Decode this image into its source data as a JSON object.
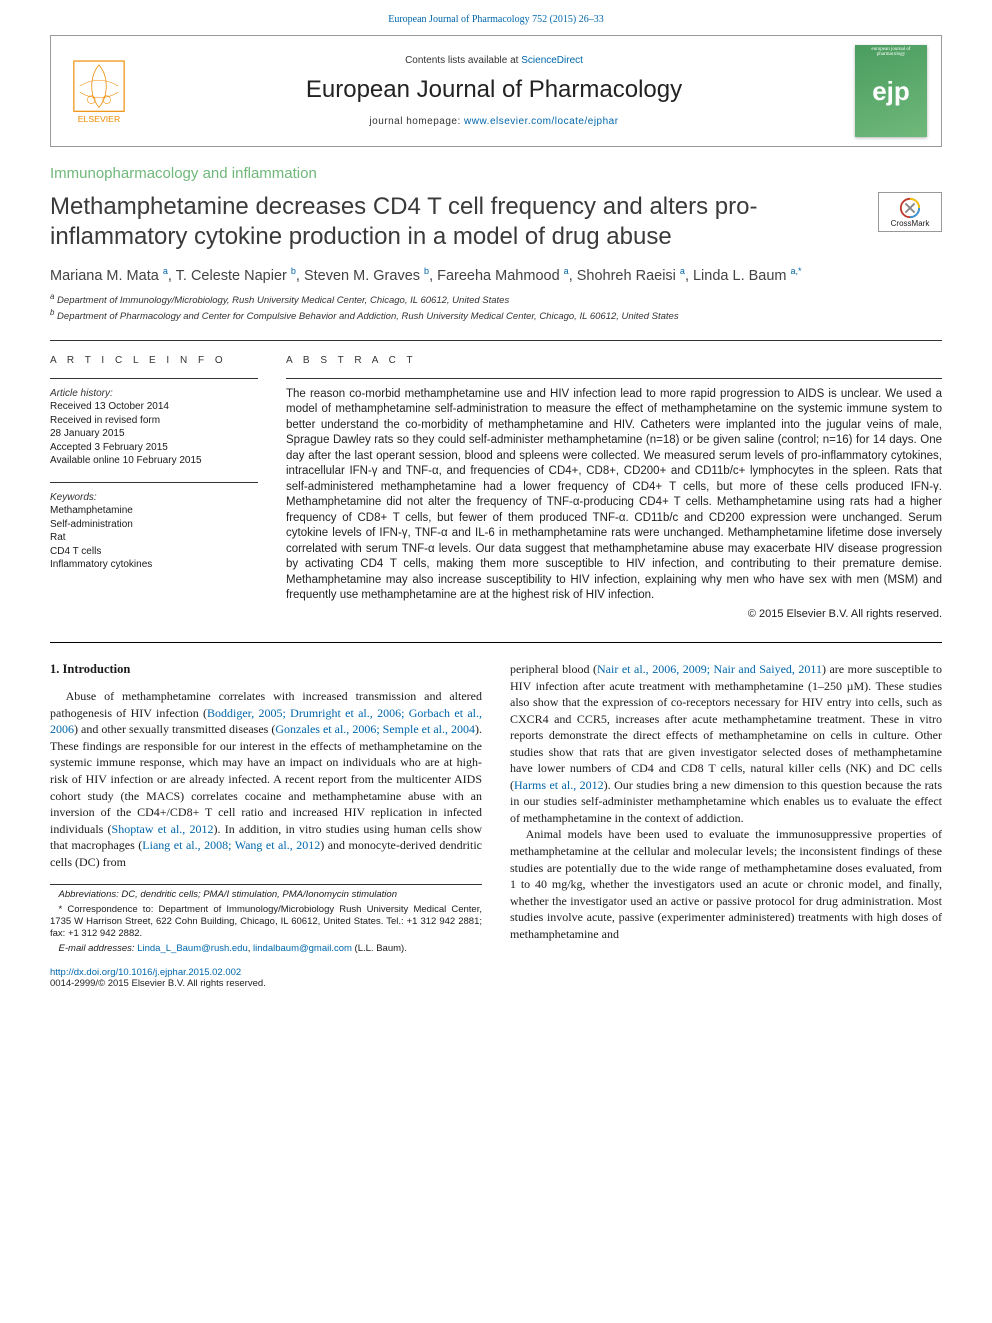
{
  "page_header": {
    "text_pre": "European Journal of Pharmacology 752 (2015) 26–33",
    "link": "European Journal of Pharmacology 752 (2015) 26–33"
  },
  "banner": {
    "contents_pre": "Contents lists available at ",
    "contents_link": "ScienceDirect",
    "journal_name": "European Journal of Pharmacology",
    "homepage_pre": "journal homepage: ",
    "homepage_link": "www.elsevier.com/locate/ejphar",
    "elsevier_label": "ELSEVIER",
    "cover_initials": "ejp",
    "cover_top": "european journal of pharmacology"
  },
  "category": "Immunopharmacology and inflammation",
  "title": "Methamphetamine decreases CD4 T cell frequency and alters pro-inflammatory cytokine production in a model of drug abuse",
  "crossmark_label": "CrossMark",
  "authors_html": "Mariana M. Mata <sup>a</sup>, T. Celeste Napier <sup>b</sup>, Steven M. Graves <sup>b</sup>, Fareeha Mahmood <sup>a</sup>, Shohreh Raeisi <sup>a</sup>, Linda L. Baum <sup>a,*</sup>",
  "affiliations": [
    "a Department of Immunology/Microbiology, Rush University Medical Center, Chicago, IL 60612, United States",
    "b Department of Pharmacology and Center for Compulsive Behavior and Addiction, Rush University Medical Center, Chicago, IL 60612, United States"
  ],
  "article_info": {
    "head": "A R T I C L E  I N F O",
    "history_label": "Article history:",
    "history": [
      "Received 13 October 2014",
      "Received in revised form",
      "28 January 2015",
      "Accepted 3 February 2015",
      "Available online 10 February 2015"
    ],
    "keywords_label": "Keywords:",
    "keywords": [
      "Methamphetamine",
      "Self-administration",
      "Rat",
      "CD4 T cells",
      "Inflammatory cytokines"
    ]
  },
  "abstract": {
    "head": "A B S T R A C T",
    "text": "The reason co-morbid methamphetamine use and HIV infection lead to more rapid progression to AIDS is unclear. We used a model of methamphetamine self-administration to measure the effect of methamphetamine on the systemic immune system to better understand the co-morbidity of methamphetamine and HIV. Catheters were implanted into the jugular veins of male, Sprague Dawley rats so they could self-administer methamphetamine (n=18) or be given saline (control; n=16) for 14 days. One day after the last operant session, blood and spleens were collected. We measured serum levels of pro-inflammatory cytokines, intracellular IFN-γ and TNF-α, and frequencies of CD4+, CD8+, CD200+ and CD11b/c+ lymphocytes in the spleen. Rats that self-administered methamphetamine had a lower frequency of CD4+ T cells, but more of these cells produced IFN-γ. Methamphetamine did not alter the frequency of TNF-α-producing CD4+ T cells. Methamphetamine using rats had a higher frequency of CD8+ T cells, but fewer of them produced TNF-α. CD11b/c and CD200 expression were unchanged. Serum cytokine levels of IFN-γ, TNF-α and IL-6 in methamphetamine rats were unchanged. Methamphetamine lifetime dose inversely correlated with serum TNF-α levels. Our data suggest that methamphetamine abuse may exacerbate HIV disease progression by activating CD4 T cells, making them more susceptible to HIV infection, and contributing to their premature demise. Methamphetamine may also increase susceptibility to HIV infection, explaining why men who have sex with men (MSM) and frequently use methamphetamine are at the highest risk of HIV infection.",
    "copyright": "© 2015 Elsevier B.V. All rights reserved."
  },
  "intro": {
    "heading": "1.  Introduction",
    "col1": [
      "Abuse of methamphetamine correlates with increased transmission and altered pathogenesis of HIV infection (<span class='cite'>Boddiger, 2005; Drumright et al., 2006; Gorbach et al., 2006</span>) and other sexually transmitted diseases (<span class='cite'>Gonzales et al., 2006; Semple et al., 2004</span>). These findings are responsible for our interest in the effects of methamphetamine on the systemic immune response, which may have an impact on individuals who are at high-risk of HIV infection or are already infected. A recent report from the multicenter AIDS cohort study (the MACS) correlates cocaine and methamphetamine abuse with an inversion of the CD4+/CD8+ T cell ratio and increased HIV replication in infected individuals (<span class='cite'>Shoptaw et al., 2012</span>). In addition, in vitro studies using human cells show that macrophages (<span class='cite'>Liang et al., 2008; Wang et al., 2012</span>) and monocyte-derived dendritic cells (DC) from"
    ],
    "col2": [
      "peripheral blood (<span class='cite'>Nair et al., 2006, 2009; Nair and Saiyed, 2011</span>) are more susceptible to HIV infection after acute treatment with methamphetamine (1–250 µM). These studies also show that the expression of co-receptors necessary for HIV entry into cells, such as CXCR4 and CCR5, increases after acute methamphetamine treatment. These in vitro reports demonstrate the direct effects of methamphetamine on cells in culture. Other studies show that rats that are given investigator selected doses of methamphetamine have lower numbers of CD4 and CD8 T cells, natural killer cells (NK) and DC cells (<span class='cite'>Harms et al., 2012</span>). Our studies bring a new dimension to this question because the rats in our studies self-administer methamphetamine which enables us to evaluate the effect of methamphetamine in the context of addiction.",
      "Animal models have been used to evaluate the immunosuppressive properties of methamphetamine at the cellular and molecular levels; the inconsistent findings of these studies are potentially due to the wide range of methamphetamine doses evaluated, from 1 to 40 mg/kg, whether the investigators used an acute or chronic model, and finally, whether the investigator used an active or passive protocol for drug administration. Most studies involve acute, passive (experimenter administered) treatments with high doses of methamphetamine and"
    ]
  },
  "footnotes": {
    "abbrev": "Abbreviations: DC, dendritic cells; PMA/I stimulation, PMA/Ionomycin stimulation",
    "corr": "* Correspondence to: Department of Immunology/Microbiology Rush University Medical Center, 1735 W Harrison Street, 622 Cohn Building, Chicago, IL 60612, United States. Tel.: +1 312 942 2881; fax: +1 312 942 2882.",
    "email_label": "E-mail addresses: ",
    "email1": "Linda_L_Baum@rush.edu",
    "email_sep": ", ",
    "email2": "lindalbaum@gmail.com",
    "email_suffix": " (L.L. Baum)."
  },
  "doi": {
    "link": "http://dx.doi.org/10.1016/j.ejphar.2015.02.002",
    "issn": "0014-2999/© 2015 Elsevier B.V. All rights reserved."
  },
  "colors": {
    "link": "#0066aa",
    "category": "#6fb87a",
    "elsevier": "#ed8b00",
    "cover_bg1": "#4a9d5f",
    "cover_bg2": "#6fb87a"
  }
}
